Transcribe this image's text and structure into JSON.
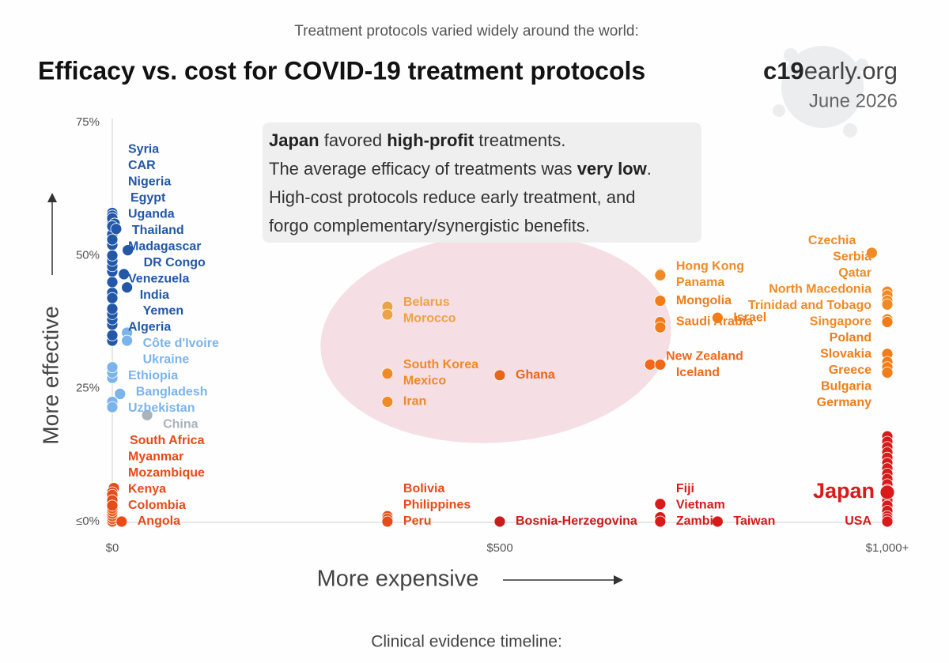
{
  "chart_data": {
    "type": "scatter",
    "subtitle": "Treatment protocols varied widely around the world:",
    "title": "Efficacy vs. cost for COVID-19 treatment protocols",
    "brand_bold": "c19",
    "brand_rest": "early.org",
    "date": "June 2026",
    "footer": "Clinical evidence timeline:",
    "y_label": "More effective",
    "x_label": "More expensive",
    "annotation": [
      [
        {
          "text": "Japan",
          "bold": true
        },
        {
          "text": " favored "
        },
        {
          "text": "high-profit",
          "bold": true
        },
        {
          "text": " treatments."
        }
      ],
      [
        {
          "text": "The average efficacy of treatments was "
        },
        {
          "text": "very low",
          "bold": true
        },
        {
          "text": "."
        }
      ],
      [
        {
          "text": "High-cost protocols reduce early treatment, and"
        }
      ],
      [
        {
          "text": "forgo complementary/synergistic benefits."
        }
      ]
    ],
    "xlim": [
      0,
      1000
    ],
    "ylim": [
      0,
      75
    ],
    "xticks": [
      {
        "value": 0,
        "label": "$0"
      },
      {
        "value": 500,
        "label": "$500"
      },
      {
        "value": 1000,
        "label": "$1,000+"
      }
    ],
    "yticks": [
      {
        "value": 0,
        "label": "≤0%"
      },
      {
        "value": 25,
        "label": "25%"
      },
      {
        "value": 50,
        "label": "50%"
      },
      {
        "value": 75,
        "label": "75%"
      }
    ],
    "points": [
      {
        "x": 0,
        "y": 34,
        "color": "#2357a8"
      },
      {
        "x": 0,
        "y": 35,
        "color": "#2357a8"
      },
      {
        "x": 0,
        "y": 37,
        "color": "#2357a8"
      },
      {
        "x": 0,
        "y": 38,
        "color": "#2357a8"
      },
      {
        "x": 0,
        "y": 39,
        "color": "#2357a8"
      },
      {
        "x": 0,
        "y": 40,
        "color": "#2357a8"
      },
      {
        "x": 0,
        "y": 43,
        "color": "#2357a8"
      },
      {
        "x": 0,
        "y": 45,
        "color": "#2357a8"
      },
      {
        "x": 0,
        "y": 47,
        "color": "#2357a8"
      },
      {
        "x": 0,
        "y": 48,
        "color": "#2357a8"
      },
      {
        "x": 0,
        "y": 49,
        "color": "#2357a8"
      },
      {
        "x": 0,
        "y": 52,
        "color": "#2357a8"
      },
      {
        "x": 0,
        "y": 53,
        "color": "#2357a8"
      },
      {
        "x": 0,
        "y": 54,
        "color": "#2357a8"
      },
      {
        "x": 0,
        "y": 56.5,
        "color": "#2357a8"
      },
      {
        "name": "Syria",
        "x": 0,
        "y": 58,
        "color": "#2357a8"
      },
      {
        "name": "CAR",
        "x": 0,
        "y": 57.5,
        "color": "#2357a8"
      },
      {
        "name": "Nigeria",
        "x": 0,
        "y": 57,
        "color": "#2357a8"
      },
      {
        "name": "Egypt",
        "x": 3,
        "y": 56,
        "color": "#2357a8"
      },
      {
        "name": "Uganda",
        "x": 0,
        "y": 55.5,
        "color": "#2357a8"
      },
      {
        "name": "Thailand",
        "x": 5,
        "y": 55,
        "color": "#2357a8"
      },
      {
        "name": "Madagascar",
        "x": 0,
        "y": 53,
        "color": "#2357a8"
      },
      {
        "name": "DR Congo",
        "x": 20,
        "y": 51,
        "color": "#2357a8"
      },
      {
        "name": "Venezuela",
        "x": 0,
        "y": 50,
        "color": "#2357a8"
      },
      {
        "name": "India",
        "x": 15,
        "y": 46.5,
        "color": "#2357a8"
      },
      {
        "name": "Yemen",
        "x": 19,
        "y": 44,
        "color": "#2357a8"
      },
      {
        "name": "Algeria",
        "x": 0,
        "y": 42,
        "color": "#2357a8"
      },
      {
        "x": 0,
        "y": 22.5,
        "color": "#7bb4ec"
      },
      {
        "x": 0,
        "y": 27,
        "color": "#7bb4ec"
      },
      {
        "x": 0,
        "y": 28,
        "color": "#7bb4ec"
      },
      {
        "name": "Côte d'Ivoire",
        "x": 19,
        "y": 35.5,
        "color": "#7bb4ec"
      },
      {
        "name": "Ukraine",
        "x": 19,
        "y": 34,
        "color": "#7bb4ec"
      },
      {
        "name": "Ethiopia",
        "x": 0,
        "y": 29,
        "color": "#7bb4ec"
      },
      {
        "name": "Bangladesh",
        "x": 10,
        "y": 24,
        "color": "#7bb4ec"
      },
      {
        "name": "Uzbekistan",
        "x": 0,
        "y": 21.5,
        "color": "#7bb4ec"
      },
      {
        "name": "China",
        "x": 45,
        "y": 20,
        "color": "#a9b3bc"
      },
      {
        "x": 0,
        "y": 0,
        "color": "#ec5a1e"
      },
      {
        "x": 0,
        "y": 0.5,
        "color": "#ec5a1e"
      },
      {
        "x": 0,
        "y": 1,
        "color": "#ec5a1e"
      },
      {
        "x": 0,
        "y": 1.5,
        "color": "#ec5a1e"
      },
      {
        "x": 0,
        "y": 2,
        "color": "#ec5a1e"
      },
      {
        "x": 0,
        "y": 2.5,
        "color": "#ec5a1e"
      },
      {
        "x": 0,
        "y": 3.5,
        "color": "#ec5a1e"
      },
      {
        "x": 0,
        "y": 4.5,
        "color": "#ec5a1e"
      },
      {
        "x": 0,
        "y": 5,
        "color": "#ec5a1e"
      },
      {
        "name": "South Africa",
        "x": 2,
        "y": 6.3,
        "color": "#e84a18"
      },
      {
        "name": "Myanmar",
        "x": 0,
        "y": 5.5,
        "color": "#e84a18"
      },
      {
        "name": "Mozambique",
        "x": 0,
        "y": 5,
        "color": "#e84a18"
      },
      {
        "name": "Kenya",
        "x": 0,
        "y": 4,
        "color": "#e84a18"
      },
      {
        "name": "Colombia",
        "x": 0,
        "y": 3,
        "color": "#e84a18"
      },
      {
        "name": "Angola",
        "x": 12,
        "y": 0,
        "color": "#e84a18"
      },
      {
        "name": "Belarus",
        "x": 355,
        "y": 40.4,
        "color": "#eda248"
      },
      {
        "name": "Morocco",
        "x": 355,
        "y": 38.9,
        "color": "#eda248"
      },
      {
        "name": "South Korea",
        "x": 355,
        "y": 28,
        "color": "#f08a24"
      },
      {
        "name": "Mexico",
        "x": 355,
        "y": 27.8,
        "color": "#f08a24"
      },
      {
        "name": "Iran",
        "x": 355,
        "y": 22.5,
        "color": "#f08a24"
      },
      {
        "name": "Ghana",
        "x": 500,
        "y": 27.5,
        "color": "#e8661a"
      },
      {
        "name": "Bolivia",
        "x": 355,
        "y": 1,
        "color": "#e84a18"
      },
      {
        "name": "Philippines",
        "x": 355,
        "y": 0.5,
        "color": "#e84a18"
      },
      {
        "name": "Peru",
        "x": 355,
        "y": 0,
        "color": "#e84a18"
      },
      {
        "name": "Bosnia-Herzegovina",
        "x": 500,
        "y": 0,
        "color": "#c91c1c"
      },
      {
        "name": "Hong Kong",
        "x": 707,
        "y": 46.5,
        "color": "#f08a24"
      },
      {
        "name": "Panama",
        "x": 707,
        "y": 46.3,
        "color": "#f08a24"
      },
      {
        "name": "Mongolia",
        "x": 707,
        "y": 41.5,
        "color": "#f07d1a"
      },
      {
        "name": "Saudi Arabia",
        "x": 707,
        "y": 37.5,
        "color": "#f07d1a"
      },
      {
        "x": 707,
        "y": 36.5,
        "color": "#f07d1a"
      },
      {
        "name": "Israel",
        "x": 781,
        "y": 38.3,
        "color": "#f07d1a"
      },
      {
        "name": "New Zealand",
        "x": 694,
        "y": 29.5,
        "color": "#f0691a"
      },
      {
        "name": "Iceland",
        "x": 707,
        "y": 29.5,
        "color": "#f0691a"
      },
      {
        "name": "Fiji",
        "x": 707,
        "y": 3.3,
        "color": "#d81a1a"
      },
      {
        "name": "Vietnam",
        "x": 707,
        "y": 0.8,
        "color": "#d81a1a"
      },
      {
        "name": "Zambia",
        "x": 707,
        "y": 0,
        "color": "#d81a1a"
      },
      {
        "name": "Taiwan",
        "x": 781,
        "y": 0,
        "color": "#d81a1a"
      },
      {
        "name": "Czechia",
        "x": 980,
        "y": 50.5,
        "color": "#f08a24"
      },
      {
        "name": "Serbia",
        "x": 1000,
        "y": 43.2,
        "color": "#f08a24"
      },
      {
        "name": "Qatar",
        "x": 1000,
        "y": 42.5,
        "color": "#f08a24"
      },
      {
        "name": "North Macedonia",
        "x": 1000,
        "y": 41.5,
        "color": "#f08a24"
      },
      {
        "name": "Trinidad and Tobago",
        "x": 1000,
        "y": 40.8,
        "color": "#f08a24"
      },
      {
        "name": "Singapore",
        "x": 1000,
        "y": 38,
        "color": "#f08a24"
      },
      {
        "name": "Poland",
        "x": 1000,
        "y": 37.5,
        "color": "#f07d1a"
      },
      {
        "name": "Slovakia",
        "x": 1000,
        "y": 31.5,
        "color": "#f07d1a"
      },
      {
        "name": "Greece",
        "x": 1000,
        "y": 30,
        "color": "#f07d1a"
      },
      {
        "name": "Bulgaria",
        "x": 1000,
        "y": 29,
        "color": "#f07d1a"
      },
      {
        "name": "Germany",
        "x": 1000,
        "y": 28,
        "color": "#f07d1a"
      },
      {
        "x": 1000,
        "y": 16,
        "color": "#d81a1a"
      },
      {
        "x": 1000,
        "y": 15,
        "color": "#d81a1a"
      },
      {
        "x": 1000,
        "y": 14,
        "color": "#d81a1a"
      },
      {
        "x": 1000,
        "y": 13,
        "color": "#d81a1a"
      },
      {
        "x": 1000,
        "y": 12,
        "color": "#d81a1a"
      },
      {
        "x": 1000,
        "y": 11,
        "color": "#d81a1a"
      },
      {
        "x": 1000,
        "y": 10,
        "color": "#d81a1a"
      },
      {
        "x": 1000,
        "y": 9,
        "color": "#d81a1a"
      },
      {
        "x": 1000,
        "y": 8,
        "color": "#d81a1a"
      },
      {
        "x": 1000,
        "y": 7,
        "color": "#d81a1a"
      },
      {
        "x": 1000,
        "y": 6,
        "color": "#d81a1a"
      },
      {
        "x": 1000,
        "y": 4,
        "color": "#d81a1a"
      },
      {
        "x": 1000,
        "y": 3,
        "color": "#d81a1a"
      },
      {
        "x": 1000,
        "y": 2,
        "color": "#d81a1a"
      },
      {
        "x": 1000,
        "y": 1,
        "color": "#d81a1a"
      },
      {
        "x": 1000,
        "y": 0.5,
        "color": "#d81a1a"
      },
      {
        "name": "USA",
        "x": 1000,
        "y": 0,
        "color": "#d81a1a"
      },
      {
        "name": "Japan",
        "x": 1000,
        "y": 5.5,
        "color": "#d81a1a",
        "highlight": true
      }
    ]
  }
}
